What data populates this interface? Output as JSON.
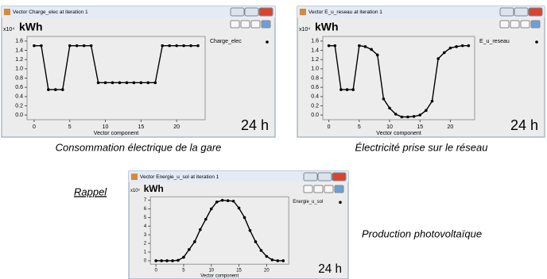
{
  "chart_data": [
    {
      "type": "line",
      "title": "Vector Charge_elec at iteration 1",
      "unit": "kWh",
      "multiplier": "x10⁴",
      "xlabel": "Vector component",
      "annotation": "24 h",
      "x": [
        0,
        1,
        2,
        3,
        4,
        5,
        6,
        7,
        8,
        9,
        10,
        11,
        12,
        13,
        14,
        15,
        16,
        17,
        18,
        19,
        20,
        21,
        22,
        23
      ],
      "series": [
        {
          "name": "Charge_elec",
          "color": "#000000",
          "values": [
            1.5,
            1.5,
            0.55,
            0.55,
            0.55,
            1.5,
            1.5,
            1.5,
            1.5,
            0.7,
            0.7,
            0.7,
            0.7,
            0.7,
            0.7,
            0.7,
            0.7,
            0.7,
            1.5,
            1.5,
            1.5,
            1.5,
            1.5,
            1.5
          ]
        }
      ],
      "xlim": [
        -1,
        24
      ],
      "xticks": [
        0,
        5,
        10,
        15,
        20
      ],
      "ylim": [
        -0.1,
        1.7
      ],
      "yticks": [
        {
          "value": 0,
          "label": "0.0"
        },
        0.2,
        0.4,
        0.6,
        0.8,
        {
          "value": 1,
          "label": "1.0"
        },
        1.2,
        1.4,
        1.6
      ],
      "grid": false
    },
    {
      "type": "line",
      "title": "Vector E_u_reseau at iteration 1",
      "unit": "kWh",
      "multiplier": "x10⁴",
      "xlabel": "Vector component",
      "annotation": "24 h",
      "x": [
        0,
        1,
        2,
        3,
        4,
        5,
        6,
        7,
        8,
        9,
        10,
        11,
        12,
        13,
        14,
        15,
        16,
        17,
        18,
        19,
        20,
        21,
        22,
        23
      ],
      "series": [
        {
          "name": "E_u_reseau",
          "color": "#000000",
          "values": [
            1.5,
            1.5,
            0.55,
            0.55,
            0.55,
            1.5,
            1.48,
            1.42,
            1.3,
            0.35,
            0.15,
            0.02,
            -0.04,
            -0.04,
            -0.03,
            0.0,
            0.1,
            0.3,
            1.22,
            1.35,
            1.45,
            1.48,
            1.5,
            1.5
          ]
        }
      ],
      "xlim": [
        -1,
        24
      ],
      "xticks": [
        0,
        5,
        10,
        15,
        20
      ],
      "ylim": [
        -0.1,
        1.7
      ],
      "yticks": [
        {
          "value": 0,
          "label": "0.0"
        },
        0.2,
        0.4,
        0.6,
        0.8,
        {
          "value": 1,
          "label": "1.0"
        },
        1.2,
        1.4,
        1.6
      ],
      "grid": false
    },
    {
      "type": "line",
      "title": "Vector Energie_u_sol at iteration 1",
      "unit": "kWh",
      "multiplier": "x10³",
      "xlabel": "Vector component",
      "annotation": "24 h",
      "x": [
        0,
        1,
        2,
        3,
        4,
        5,
        6,
        7,
        8,
        9,
        10,
        11,
        12,
        13,
        14,
        15,
        16,
        17,
        18,
        19,
        20,
        21,
        22,
        23
      ],
      "series": [
        {
          "name": "Energie_u_sol",
          "color": "#000000",
          "values": [
            0,
            0,
            0,
            0,
            0.05,
            0.4,
            1.3,
            2.2,
            3.6,
            4.8,
            6.0,
            6.8,
            7.0,
            6.95,
            6.9,
            6.1,
            5.0,
            3.5,
            2.2,
            1.2,
            0.5,
            0.1,
            0,
            0
          ]
        }
      ],
      "xlim": [
        -1,
        24
      ],
      "xticks": [
        0,
        5,
        10,
        15,
        20
      ],
      "ylim": [
        -0.4,
        7.4
      ],
      "yticks": [
        0,
        1,
        2,
        3,
        4,
        5,
        6,
        7
      ],
      "grid": false
    }
  ],
  "captions": {
    "chart1": "Consommation électrique de la gare",
    "chart2": "Électricité prise sur le réseau",
    "reminder": "Rappel",
    "chart3": "Production photovoltaïque"
  }
}
